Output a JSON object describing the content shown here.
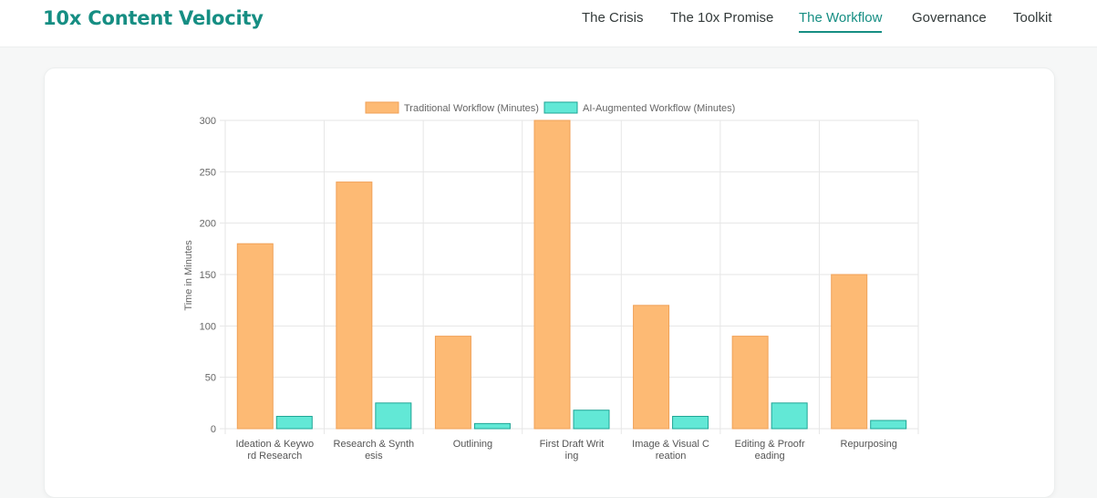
{
  "header": {
    "brand": "10x Content Velocity",
    "nav": [
      {
        "id": "crisis",
        "label": "The Crisis",
        "active": false
      },
      {
        "id": "promise",
        "label": "The 10x Promise",
        "active": false
      },
      {
        "id": "workflow",
        "label": "The Workflow",
        "active": true
      },
      {
        "id": "governance",
        "label": "Governance",
        "active": false
      },
      {
        "id": "toolkit",
        "label": "Toolkit",
        "active": false
      }
    ]
  },
  "colors": {
    "accent": "#168e83",
    "traditional_fill": "#fdba74",
    "traditional_border": "#f0a259",
    "ai_fill": "#62e8d6",
    "ai_border": "#1fa595",
    "grid": "#e6e6e6",
    "axis_text": "#666666"
  },
  "chart_data": {
    "type": "bar",
    "title": "",
    "xlabel": "",
    "ylabel": "Time in Minutes",
    "ylim": [
      0,
      300
    ],
    "yticks": [
      0,
      50,
      100,
      150,
      200,
      250,
      300
    ],
    "grid": true,
    "legend": "top-center",
    "categories": [
      [
        "Ideation & Keywo",
        "rd Research"
      ],
      [
        "Research & Synth",
        "esis"
      ],
      [
        "Outlining"
      ],
      [
        "First Draft Writ",
        "ing"
      ],
      [
        "Image & Visual C",
        "reation"
      ],
      [
        "Editing & Proofr",
        "eading"
      ],
      [
        "Repurposing"
      ]
    ],
    "series": [
      {
        "name": "Traditional Workflow (Minutes)",
        "values": [
          180,
          240,
          90,
          300,
          120,
          90,
          150
        ]
      },
      {
        "name": "AI-Augmented Workflow (Minutes)",
        "values": [
          12,
          25,
          5,
          18,
          12,
          25,
          8
        ]
      }
    ]
  }
}
